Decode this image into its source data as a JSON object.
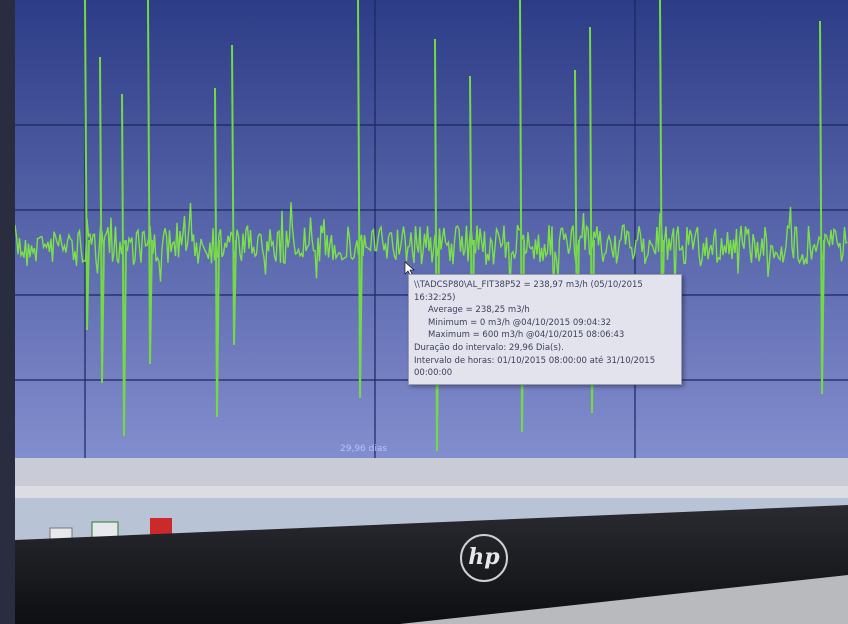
{
  "tooltip": {
    "lines": [
      "\\\\TADCSP80\\AL_FIT38P52 = 238,97 m3/h (05/10/2015",
      "16:32:25)",
      "Average = 238,25 m3/h",
      "Minimum = 0 m3/h @04/10/2015 09:04:32",
      "Maximum = 600 m3/h @04/10/2015 08:06:43",
      "Duração do intervalo: 29,96 Dia(s).",
      "Intervalo de horas: 01/10/2015 08:00:00 até 31/10/2015",
      "00:00:00"
    ]
  },
  "toolbar": {
    "span": "29,96 dias"
  },
  "logo": "hp"
}
